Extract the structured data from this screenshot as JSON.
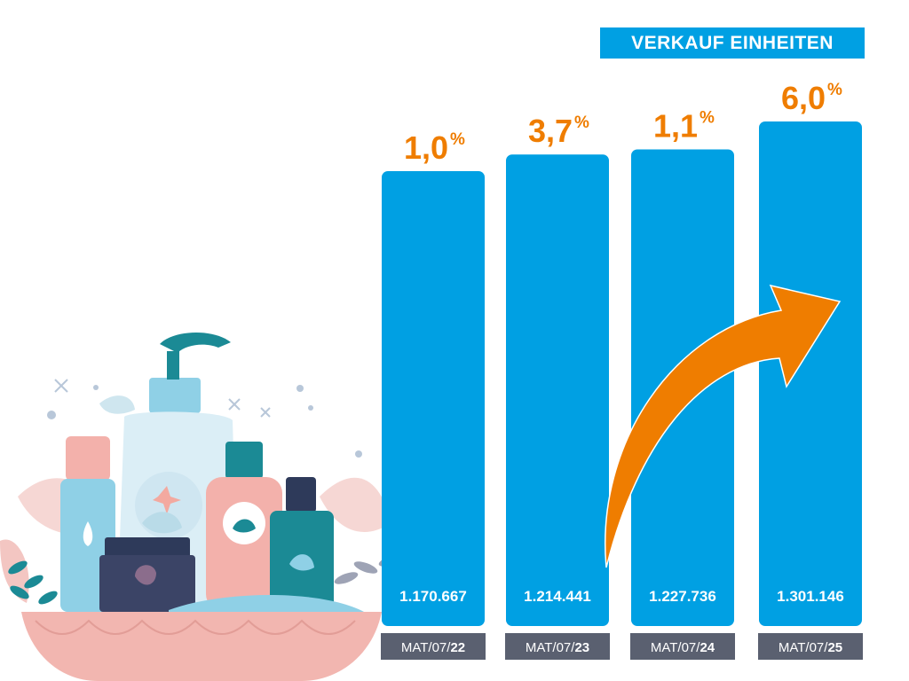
{
  "chart_data": {
    "type": "bar",
    "title": "VERKAUF EINHEITEN",
    "categories": [
      "MAT/07/22",
      "MAT/07/23",
      "MAT/07/24",
      "MAT/07/25"
    ],
    "category_prefixes": [
      "MAT/07/",
      "MAT/07/",
      "MAT/07/",
      "MAT/07/"
    ],
    "category_years": [
      "22",
      "23",
      "24",
      "25"
    ],
    "values": [
      1170667,
      1214441,
      1227736,
      1301146
    ],
    "value_labels": [
      "1.170.667",
      "1.214.441",
      "1.227.736",
      "1.301.146"
    ],
    "growth_labels": [
      "1,0",
      "3,7",
      "1,1",
      "6,0"
    ],
    "growth_unit": "%",
    "trend_arrow": true,
    "colors": {
      "bar": "#00a0e3",
      "growth": "#ef7d00",
      "arrow": "#ef7d00",
      "tick_box": "#5a6070",
      "title_badge": "#00a0e3"
    }
  },
  "illustration": {
    "icon": "cosmetics-products-illustration"
  }
}
